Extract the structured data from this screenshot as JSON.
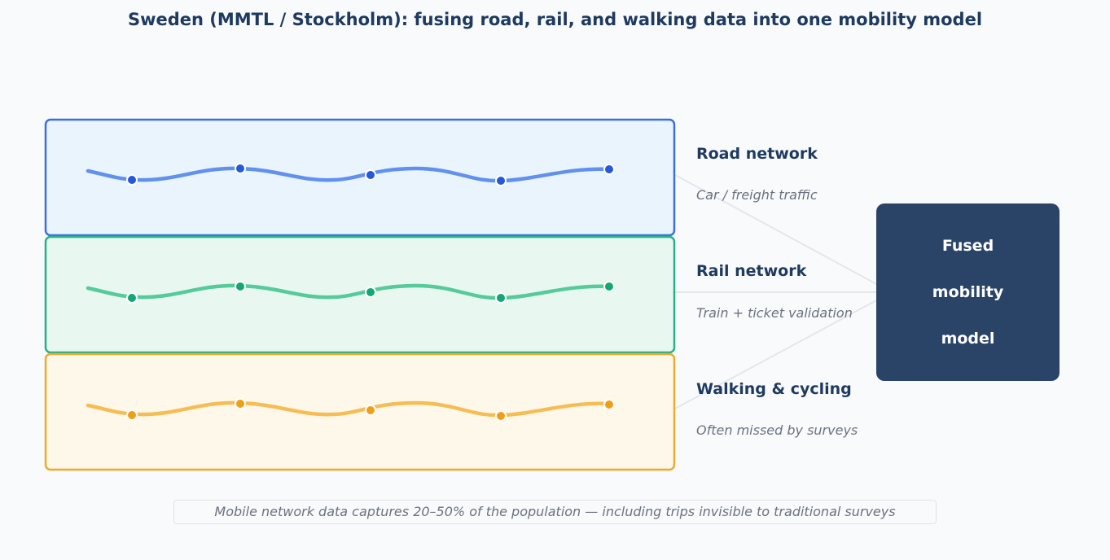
{
  "title": "Sweden (MMTL / Stockholm): fusing road, rail, and walking data into one mobility model",
  "layers": [
    {
      "id": "road",
      "title": "Road network",
      "subtitle": "Car / freight traffic",
      "stroke": "#3b6fe0",
      "fill": "#e9f4fd",
      "line": "#6190ee",
      "dot": "#2459d8"
    },
    {
      "id": "rail",
      "title": "Rail network",
      "subtitle": "Train + ticket validation",
      "stroke": "#25b28b",
      "fill": "#e8f7f0",
      "line": "#55cb9c",
      "dot": "#12a774"
    },
    {
      "id": "walking",
      "title": "Walking & cycling",
      "subtitle": "Often missed by surveys",
      "stroke": "#eeaa2c",
      "fill": "#fef8ea",
      "line": "#f6bd55",
      "dot": "#ef9f17"
    }
  ],
  "fused_model": {
    "lines": [
      "Fused",
      "mobility",
      "model"
    ],
    "color": "#2a4467"
  },
  "footer": "Mobile network data captures 20–50% of the population — including trips invisible to traditional surveys"
}
